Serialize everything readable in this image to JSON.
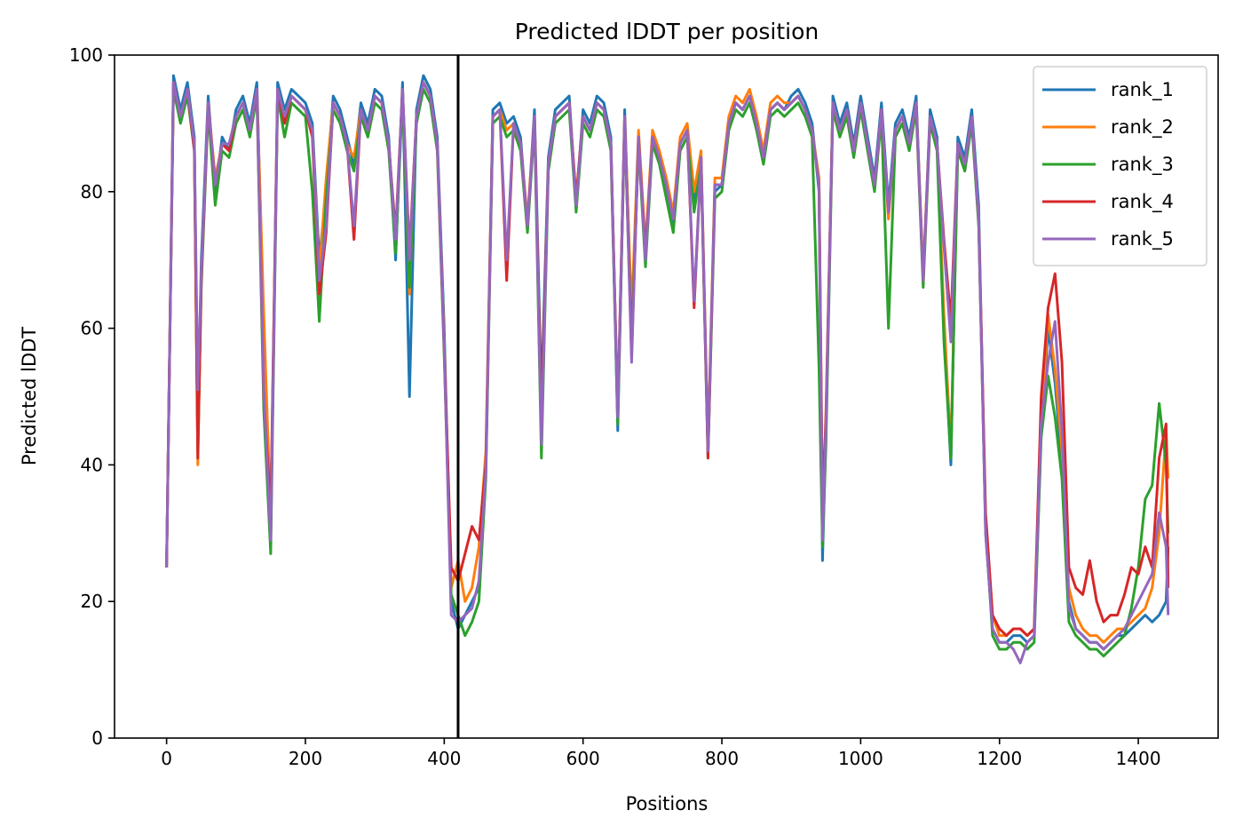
{
  "chart_data": {
    "type": "line",
    "title": "Predicted lDDT per position",
    "xlabel": "Positions",
    "ylabel": "Predicted lDDT",
    "xlim": [
      -75,
      1515
    ],
    "ylim": [
      0,
      100
    ],
    "xticks": [
      0,
      200,
      400,
      600,
      800,
      1000,
      1200,
      1400
    ],
    "yticks": [
      0,
      20,
      40,
      60,
      80,
      100
    ],
    "grid": false,
    "legend_position": "top-right",
    "vline_x": 420,
    "x": [
      0,
      10,
      20,
      30,
      40,
      45,
      50,
      60,
      70,
      80,
      90,
      100,
      110,
      120,
      130,
      140,
      150,
      160,
      170,
      180,
      190,
      200,
      210,
      220,
      230,
      240,
      250,
      260,
      270,
      280,
      290,
      300,
      310,
      320,
      330,
      340,
      350,
      360,
      370,
      380,
      390,
      400,
      410,
      420,
      430,
      440,
      450,
      460,
      470,
      480,
      490,
      500,
      510,
      520,
      530,
      540,
      550,
      560,
      570,
      580,
      590,
      600,
      610,
      620,
      630,
      640,
      650,
      660,
      670,
      680,
      690,
      700,
      710,
      720,
      730,
      740,
      750,
      760,
      770,
      780,
      790,
      800,
      810,
      820,
      830,
      840,
      850,
      860,
      870,
      880,
      890,
      900,
      910,
      920,
      930,
      940,
      945,
      950,
      960,
      970,
      980,
      990,
      1000,
      1010,
      1020,
      1030,
      1040,
      1050,
      1060,
      1070,
      1080,
      1090,
      1100,
      1110,
      1120,
      1130,
      1140,
      1150,
      1160,
      1170,
      1180,
      1190,
      1200,
      1210,
      1220,
      1230,
      1240,
      1250,
      1260,
      1270,
      1280,
      1290,
      1300,
      1310,
      1320,
      1330,
      1340,
      1350,
      1360,
      1370,
      1380,
      1390,
      1400,
      1410,
      1420,
      1430,
      1440,
      1443
    ],
    "series": [
      {
        "name": "rank_1",
        "color": "#1f77b4",
        "values": [
          25,
          97,
          92,
          96,
          88,
          45,
          70,
          94,
          80,
          88,
          86,
          92,
          94,
          90,
          96,
          60,
          30,
          96,
          92,
          95,
          94,
          93,
          90,
          70,
          80,
          94,
          92,
          88,
          84,
          93,
          90,
          95,
          94,
          88,
          70,
          96,
          50,
          92,
          97,
          95,
          88,
          60,
          20,
          16,
          18,
          20,
          22,
          40,
          92,
          93,
          90,
          91,
          88,
          75,
          92,
          50,
          85,
          92,
          93,
          94,
          78,
          92,
          90,
          94,
          93,
          88,
          45,
          92,
          60,
          88,
          70,
          88,
          85,
          80,
          75,
          87,
          89,
          78,
          85,
          42,
          80,
          81,
          90,
          93,
          92,
          94,
          90,
          85,
          92,
          93,
          92,
          94,
          95,
          93,
          90,
          80,
          26,
          45,
          94,
          90,
          93,
          87,
          94,
          88,
          82,
          93,
          78,
          90,
          92,
          88,
          94,
          67,
          92,
          88,
          60,
          40,
          88,
          85,
          92,
          78,
          30,
          16,
          14,
          14,
          15,
          15,
          14,
          15,
          45,
          60,
          52,
          40,
          20,
          16,
          15,
          14,
          14,
          13,
          14,
          15,
          15,
          16,
          17,
          18,
          17,
          18,
          20,
          28
        ]
      },
      {
        "name": "rank_2",
        "color": "#ff7f0e",
        "values": [
          25,
          96,
          91,
          95,
          87,
          40,
          68,
          93,
          82,
          87,
          87,
          91,
          93,
          89,
          95,
          62,
          32,
          95,
          91,
          94,
          93,
          92,
          89,
          68,
          82,
          93,
          91,
          87,
          85,
          92,
          89,
          94,
          93,
          87,
          72,
          95,
          65,
          91,
          96,
          94,
          87,
          58,
          22,
          26,
          20,
          22,
          28,
          42,
          91,
          92,
          89,
          90,
          87,
          76,
          91,
          45,
          84,
          91,
          92,
          93,
          79,
          91,
          89,
          93,
          92,
          87,
          47,
          91,
          62,
          89,
          72,
          89,
          86,
          82,
          77,
          88,
          90,
          80,
          86,
          43,
          82,
          82,
          91,
          94,
          93,
          95,
          91,
          86,
          93,
          94,
          93,
          93,
          94,
          92,
          89,
          82,
          30,
          48,
          93,
          89,
          92,
          86,
          93,
          87,
          81,
          92,
          76,
          89,
          91,
          87,
          93,
          68,
          91,
          87,
          62,
          42,
          87,
          84,
          91,
          76,
          32,
          18,
          15,
          15,
          16,
          16,
          15,
          16,
          46,
          62,
          54,
          42,
          22,
          18,
          16,
          15,
          15,
          14,
          15,
          16,
          16,
          17,
          18,
          19,
          22,
          30,
          45,
          38
        ]
      },
      {
        "name": "rank_3",
        "color": "#2ca02c",
        "values": [
          25,
          95,
          90,
          94,
          86,
          42,
          66,
          92,
          78,
          86,
          85,
          90,
          92,
          88,
          94,
          48,
          27,
          94,
          88,
          93,
          92,
          91,
          80,
          61,
          79,
          92,
          90,
          86,
          83,
          91,
          88,
          93,
          92,
          86,
          71,
          94,
          66,
          90,
          95,
          93,
          86,
          56,
          21,
          18,
          15,
          17,
          20,
          38,
          90,
          91,
          88,
          89,
          86,
          74,
          90,
          41,
          83,
          90,
          91,
          92,
          77,
          90,
          88,
          92,
          91,
          86,
          46,
          90,
          58,
          87,
          69,
          87,
          84,
          79,
          74,
          86,
          88,
          77,
          84,
          41,
          79,
          80,
          89,
          92,
          91,
          93,
          89,
          84,
          91,
          92,
          91,
          92,
          93,
          91,
          88,
          54,
          28,
          43,
          92,
          88,
          91,
          85,
          92,
          86,
          80,
          91,
          60,
          88,
          90,
          86,
          92,
          66,
          90,
          86,
          58,
          41,
          86,
          83,
          90,
          75,
          31,
          15,
          13,
          13,
          14,
          14,
          13,
          14,
          44,
          53,
          47,
          38,
          17,
          15,
          14,
          13,
          13,
          12,
          13,
          14,
          15,
          19,
          25,
          35,
          37,
          49,
          40,
          30
        ]
      },
      {
        "name": "rank_4",
        "color": "#d62728",
        "values": [
          25,
          96,
          91,
          95,
          86,
          41,
          67,
          93,
          81,
          87,
          86,
          91,
          93,
          89,
          95,
          50,
          33,
          95,
          90,
          94,
          93,
          92,
          88,
          65,
          74,
          93,
          91,
          87,
          73,
          92,
          89,
          94,
          93,
          87,
          74,
          95,
          71,
          91,
          96,
          94,
          87,
          57,
          25,
          23,
          27,
          31,
          29,
          40,
          91,
          92,
          67,
          90,
          87,
          75,
          91,
          47,
          84,
          91,
          92,
          93,
          79,
          91,
          89,
          93,
          92,
          87,
          48,
          91,
          56,
          88,
          71,
          88,
          85,
          81,
          76,
          87,
          89,
          63,
          85,
          41,
          81,
          81,
          90,
          93,
          92,
          94,
          90,
          85,
          92,
          93,
          92,
          93,
          94,
          92,
          89,
          81,
          34,
          47,
          93,
          89,
          92,
          86,
          93,
          87,
          81,
          92,
          77,
          89,
          91,
          87,
          93,
          67,
          91,
          87,
          73,
          61,
          87,
          84,
          91,
          76,
          33,
          18,
          16,
          15,
          16,
          16,
          15,
          16,
          50,
          63,
          68,
          55,
          25,
          22,
          21,
          26,
          20,
          17,
          18,
          18,
          21,
          25,
          24,
          28,
          25,
          41,
          46,
          22
        ]
      },
      {
        "name": "rank_5",
        "color": "#9467bd",
        "values": [
          25,
          96,
          91,
          95,
          87,
          51,
          68,
          93,
          81,
          87,
          87,
          91,
          93,
          89,
          95,
          51,
          29,
          95,
          91,
          94,
          93,
          92,
          89,
          67,
          75,
          93,
          91,
          87,
          75,
          92,
          89,
          94,
          93,
          87,
          73,
          95,
          70,
          91,
          96,
          94,
          87,
          57,
          18,
          17,
          18,
          19,
          23,
          39,
          91,
          92,
          70,
          90,
          87,
          75,
          91,
          43,
          84,
          91,
          92,
          93,
          78,
          91,
          89,
          93,
          92,
          87,
          47,
          91,
          55,
          88,
          70,
          88,
          85,
          81,
          76,
          87,
          89,
          64,
          85,
          42,
          81,
          81,
          90,
          93,
          92,
          94,
          90,
          85,
          92,
          93,
          92,
          93,
          94,
          92,
          89,
          81,
          29,
          46,
          93,
          89,
          92,
          86,
          93,
          87,
          81,
          92,
          77,
          89,
          91,
          87,
          93,
          67,
          91,
          87,
          72,
          58,
          87,
          84,
          91,
          76,
          30,
          16,
          14,
          14,
          13,
          11,
          14,
          15,
          46,
          55,
          61,
          45,
          19,
          16,
          15,
          14,
          14,
          13,
          14,
          15,
          16,
          18,
          20,
          22,
          24,
          33,
          28,
          18
        ]
      }
    ]
  }
}
